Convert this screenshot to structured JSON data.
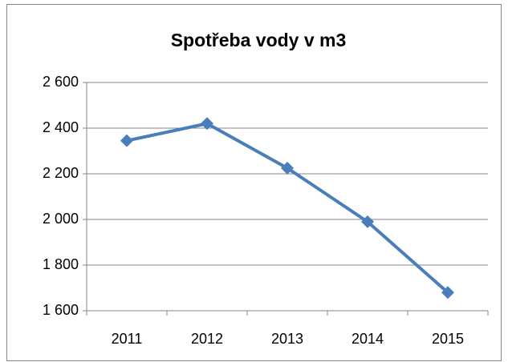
{
  "chart_data": {
    "type": "line",
    "title": "Spotřeba vody v m3",
    "categories": [
      "2011",
      "2012",
      "2013",
      "2014",
      "2015"
    ],
    "series": [
      {
        "name": "Spotřeba vody v m3",
        "color": "#4a7ebb",
        "values": [
          2345,
          2420,
          2225,
          1990,
          1680
        ]
      }
    ],
    "ylim": [
      1600,
      2600
    ],
    "yticks": [
      {
        "value": 1600,
        "label": "1 600"
      },
      {
        "value": 1800,
        "label": "1 800"
      },
      {
        "value": 2000,
        "label": "2 000"
      },
      {
        "value": 2200,
        "label": "2 200"
      },
      {
        "value": 2400,
        "label": "2 400"
      },
      {
        "value": 2600,
        "label": "2 600"
      }
    ],
    "grid": true
  }
}
